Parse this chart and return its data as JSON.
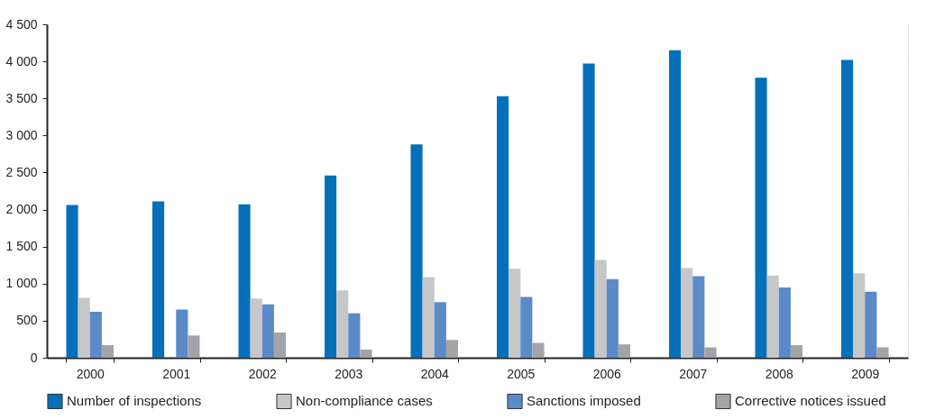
{
  "chart_data": {
    "type": "bar",
    "categories": [
      "2000",
      "2001",
      "2002",
      "2003",
      "2004",
      "2005",
      "2006",
      "2007",
      "2008",
      "2009"
    ],
    "series": [
      {
        "name": "Number of inspections",
        "color": "#0570b9",
        "values": [
          2060,
          2110,
          2070,
          2460,
          2880,
          3530,
          3970,
          4150,
          3780,
          4020
        ]
      },
      {
        "name": "Non-compliance cases",
        "color": "#c6c7c9",
        "values": [
          810,
          null,
          800,
          910,
          1090,
          1200,
          1320,
          1210,
          1110,
          1140
        ]
      },
      {
        "name": "Sanctions imposed",
        "color": "#5a8bc8",
        "values": [
          620,
          650,
          720,
          600,
          750,
          820,
          1060,
          1100,
          950,
          890
        ]
      },
      {
        "name": "Corrective notices issued",
        "color": "#a3a4a7",
        "values": [
          170,
          300,
          340,
          110,
          240,
          200,
          180,
          140,
          170,
          140
        ]
      }
    ],
    "ylim": [
      0,
      4500
    ],
    "yticks": [
      0,
      500,
      {
        "value": 1000,
        "label": "1 000"
      },
      {
        "value": 1500,
        "label": "1 500"
      },
      {
        "value": 2000,
        "label": "2 000"
      },
      {
        "value": 2500,
        "label": "2 500"
      },
      {
        "value": 3000,
        "label": "3 000"
      },
      {
        "value": 3500,
        "label": "3 500"
      },
      {
        "value": 4000,
        "label": "4 000"
      },
      {
        "value": 4500,
        "label": "4 500"
      }
    ],
    "grid": true,
    "legend": "bottom"
  }
}
